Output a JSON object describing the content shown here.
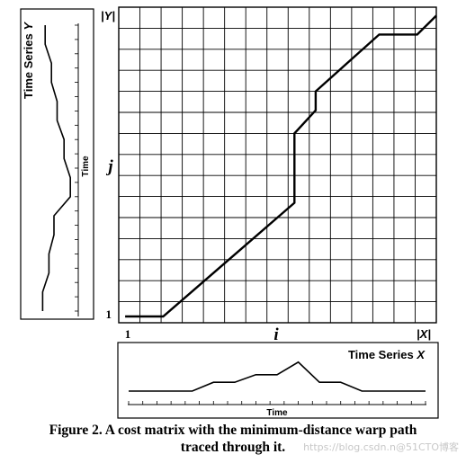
{
  "series_y": {
    "title_prefix": "Time Series ",
    "title_var": "Y",
    "axis_label": "Time"
  },
  "series_x": {
    "title_prefix": "Time Series ",
    "title_var": "X",
    "axis_label": "Time"
  },
  "matrix": {
    "cols": 15,
    "rows": 15,
    "label_j": "j",
    "label_i": "i",
    "label_y_size": "|Y|",
    "label_x_size": "|X|",
    "label_y_start": "1",
    "label_x_start": "1"
  },
  "warp_path": [
    [
      0.3,
      0.3
    ],
    [
      2.1,
      0.3
    ],
    [
      8.3,
      5.7
    ],
    [
      8.3,
      9.0
    ],
    [
      9.3,
      10.1
    ],
    [
      9.3,
      11.0
    ],
    [
      12.3,
      13.7
    ],
    [
      14.1,
      13.7
    ],
    [
      15,
      14.6
    ]
  ],
  "series_y_values": [
    0.2,
    0.2,
    1.2,
    1.2,
    2.0,
    2.0,
    4.6,
    4.6,
    3.6,
    3.6,
    2.5,
    2.5,
    1.6,
    1.6,
    0.6,
    0.6
  ],
  "series_x_values": [
    0.6,
    0.6,
    0.6,
    0.6,
    1.3,
    1.3,
    1.9,
    1.9,
    2.9,
    1.3,
    1.3,
    0.6,
    0.6,
    0.6,
    0.6
  ],
  "caption": {
    "line1": "Figure 2. A cost matrix with the minimum-distance warp path",
    "line2": "traced through it."
  },
  "watermark": "https://blog.csdn.n@51CTO博客"
}
